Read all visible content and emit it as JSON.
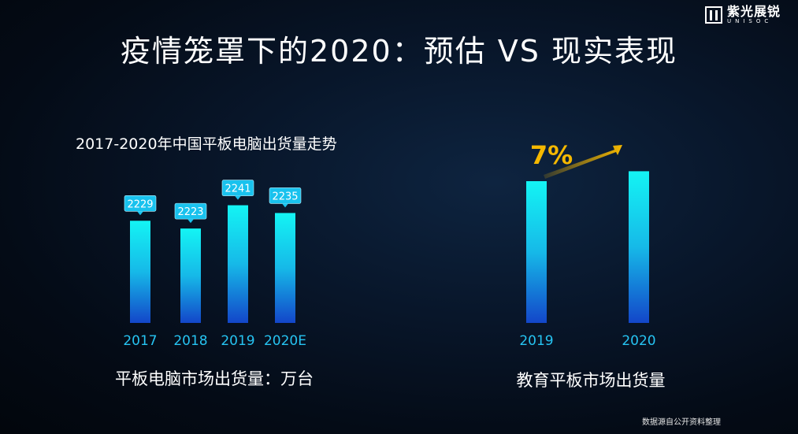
{
  "logo": {
    "cn": "紫光展锐",
    "en": "UNISOC"
  },
  "title": "疫情笼罩下的2020：预估 VS 现实表现",
  "footnote": "数据源自公开资料整理",
  "colors": {
    "bar_top": "#14f4f4",
    "bar_bottom": "#1346c9",
    "label_bg": "#19c2ee",
    "arrow": "#f5b800"
  },
  "chart_data": [
    {
      "type": "bar",
      "title": "2017-2020年中国平板电脑出货量走势",
      "categories": [
        "2017",
        "2018",
        "2019",
        "2020E"
      ],
      "values": [
        2229,
        2223,
        2241,
        2235
      ],
      "data_labels": [
        "2229",
        "2223",
        "2241",
        "2235"
      ],
      "xlabel": "平板电脑市场出货量：万台",
      "ylabel": "",
      "grid": false
    },
    {
      "type": "bar",
      "title": "",
      "categories": [
        "2019",
        "2020"
      ],
      "values": [
        1,
        1.07
      ],
      "annotation": "7%",
      "xlabel": "教育平板市场出货量",
      "ylabel": "",
      "grid": false
    }
  ]
}
